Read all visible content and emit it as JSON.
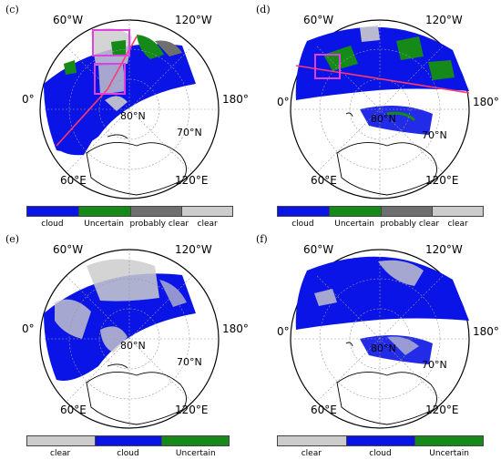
{
  "colors": {
    "cloud": "#0a14e6",
    "uncertain": "#168a18",
    "probably_clear": "#6f6f6f",
    "clear": "#cccccc",
    "box": "#e040e0",
    "track": "#ff3b6b"
  },
  "panels": [
    {
      "id": "c",
      "label": "(c)",
      "lon_labels": {
        "w60": "60°W",
        "w120": "120°W",
        "zero": "0°",
        "e180": "180°",
        "e60": "60°E",
        "e120": "120°E"
      },
      "lat_label": "80°N",
      "lon_inner": "70°N",
      "legend": [
        "cloud",
        "Uncertain",
        "probably clear",
        "clear"
      ]
    },
    {
      "id": "d",
      "label": "(d)",
      "lon_labels": {
        "w60": "60°W",
        "w120": "120°W",
        "zero": "0°",
        "e180": "180°",
        "e60": "60°E",
        "e120": "120°E"
      },
      "lat_label": "80°N",
      "lon_inner": "70°N",
      "legend": [
        "cloud",
        "Uncertain",
        "probably clear",
        "clear"
      ]
    },
    {
      "id": "e",
      "label": "(e)",
      "lon_labels": {
        "w60": "60°W",
        "w120": "120°W",
        "zero": "0°",
        "e180": "180°",
        "e60": "60°E",
        "e120": "120°E"
      },
      "lat_label": "80°N",
      "lon_inner": "70°N",
      "legend": [
        "clear",
        "cloud",
        "Uncertain"
      ]
    },
    {
      "id": "f",
      "label": "(f)",
      "lon_labels": {
        "w60": "60°W",
        "w120": "120°W",
        "zero": "0°",
        "e180": "180°",
        "e60": "60°E",
        "e120": "120°E"
      },
      "lat_label": "80°N",
      "lon_inner": "70°N",
      "legend": [
        "clear",
        "cloud",
        "Uncertain"
      ]
    }
  ]
}
